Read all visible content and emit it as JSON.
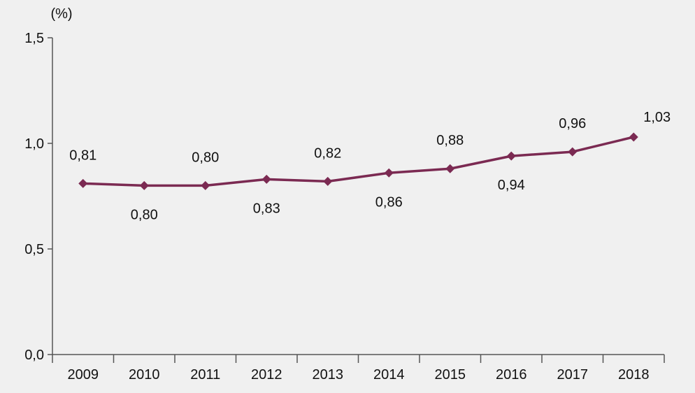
{
  "chart_data": {
    "type": "line",
    "unit_label": "(%)",
    "categories": [
      "2009",
      "2010",
      "2011",
      "2012",
      "2013",
      "2014",
      "2015",
      "2016",
      "2017",
      "2018"
    ],
    "series": [
      {
        "values": [
          0.81,
          0.8,
          0.8,
          0.83,
          0.82,
          0.86,
          0.88,
          0.94,
          0.96,
          1.03
        ],
        "value_labels": [
          "0,81",
          "0,80",
          "0,80",
          "0,83",
          "0,82",
          "0,86",
          "0,88",
          "0,94",
          "0,96",
          "1,03"
        ],
        "label_positions": [
          "above",
          "below",
          "above",
          "below",
          "above",
          "below",
          "above",
          "below",
          "above",
          "above-right"
        ],
        "color": "#7b2a52",
        "marker": "diamond"
      }
    ],
    "ylim": [
      0,
      1.5
    ],
    "yticks": [
      0,
      0.5,
      1.0,
      1.5
    ],
    "ytick_labels": [
      "0,0",
      "0,5",
      "1,0",
      "1,5"
    ],
    "grid": false,
    "legend": "none"
  }
}
